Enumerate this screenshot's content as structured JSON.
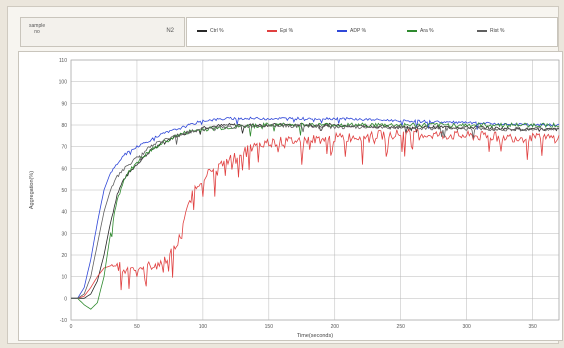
{
  "header": {
    "sample_label_line1": "sample",
    "sample_label_line2": "no",
    "sample_value": "N2"
  },
  "colors": {
    "Ctrl": "#2a2a2a",
    "Epi": "#e04040",
    "ADP": "#3048d8",
    "Ara": "#2f8a2f",
    "Rist": "#606060"
  },
  "chart_data": {
    "type": "line",
    "title": "",
    "xlabel": "Time(seconds)",
    "ylabel": "Aggregation(%)",
    "xlim": [
      0,
      370
    ],
    "ylim": [
      -10,
      110
    ],
    "x_ticks": [
      0,
      50,
      100,
      150,
      200,
      250,
      300,
      350
    ],
    "y_ticks": [
      -10,
      0,
      10,
      20,
      30,
      40,
      50,
      60,
      70,
      80,
      90,
      100,
      110
    ],
    "x_tick_labels": [
      "0",
      "50",
      "100",
      "150",
      "200",
      "250",
      "300",
      "350"
    ],
    "y_tick_labels": [
      "-10",
      "0",
      "10",
      "20",
      "30",
      "40",
      "50",
      "60",
      "70",
      "80",
      "90",
      "100",
      "110"
    ],
    "grid": true,
    "legend_position": "top",
    "series": [
      {
        "name": "Ctrl  %",
        "key": "Ctrl",
        "x": [
          0,
          5,
          10,
          15,
          20,
          25,
          30,
          35,
          40,
          50,
          60,
          70,
          80,
          90,
          100,
          120,
          150,
          200,
          250,
          300,
          350,
          370
        ],
        "y": [
          0,
          0,
          0,
          2,
          8,
          20,
          35,
          48,
          55,
          62,
          68,
          72,
          75,
          77,
          79,
          80,
          80,
          80,
          79,
          79,
          78,
          78
        ]
      },
      {
        "name": "Epi  %",
        "key": "Epi",
        "x": [
          0,
          5,
          10,
          15,
          20,
          25,
          30,
          35,
          40,
          50,
          60,
          70,
          80,
          85,
          90,
          95,
          100,
          110,
          120,
          130,
          150,
          200,
          250,
          300,
          350,
          370
        ],
        "y": [
          0,
          0,
          1,
          5,
          10,
          14,
          15,
          15,
          14,
          14,
          15,
          17,
          24,
          33,
          45,
          52,
          56,
          60,
          64,
          68,
          72,
          74,
          76,
          75,
          74,
          74
        ]
      },
      {
        "name": "ADP  %",
        "key": "ADP",
        "x": [
          0,
          5,
          10,
          15,
          20,
          25,
          30,
          35,
          40,
          50,
          60,
          70,
          80,
          90,
          100,
          120,
          150,
          200,
          250,
          300,
          350,
          370
        ],
        "y": [
          0,
          0,
          5,
          18,
          35,
          50,
          58,
          62,
          66,
          70,
          73,
          76,
          78,
          80,
          82,
          83,
          83,
          83,
          82,
          81,
          80,
          80
        ]
      },
      {
        "name": "Ara  %",
        "key": "Ara",
        "x": [
          0,
          5,
          10,
          15,
          20,
          25,
          30,
          35,
          40,
          50,
          60,
          70,
          80,
          90,
          100,
          120,
          150,
          200,
          250,
          300,
          350,
          370
        ],
        "y": [
          0,
          0,
          -3,
          -5,
          -2,
          10,
          30,
          45,
          55,
          63,
          68,
          72,
          75,
          77,
          78,
          79,
          80,
          80,
          80,
          80,
          80,
          80
        ]
      },
      {
        "name": "Rist  %",
        "key": "Rist",
        "x": [
          0,
          5,
          10,
          15,
          20,
          25,
          30,
          35,
          40,
          50,
          60,
          70,
          80,
          90,
          100,
          120,
          150,
          200,
          250,
          300,
          350,
          370
        ],
        "y": [
          0,
          0,
          2,
          10,
          25,
          40,
          50,
          56,
          60,
          65,
          70,
          73,
          75,
          77,
          78,
          79,
          80,
          79,
          79,
          78,
          78,
          78
        ]
      }
    ]
  }
}
